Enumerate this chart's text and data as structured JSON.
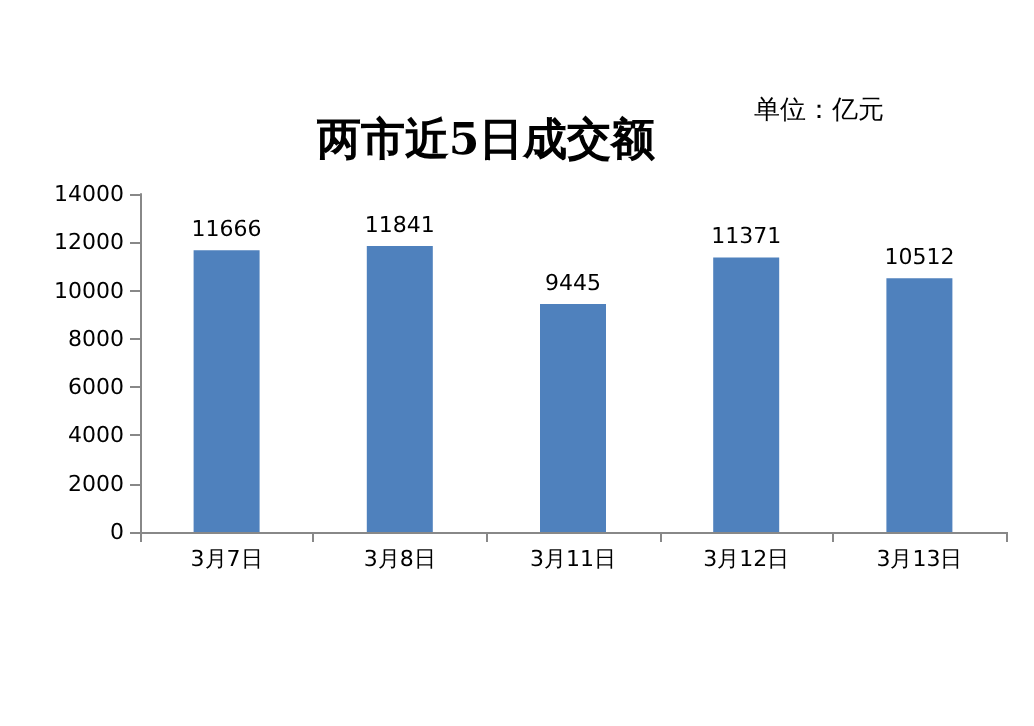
{
  "chart_data": {
    "type": "bar",
    "title": "两市近5日成交额",
    "annotations": [
      "单位：亿元"
    ],
    "categories": [
      "3月7日",
      "3月8日",
      "3月11日",
      "3月12日",
      "3月13日"
    ],
    "values": [
      11666,
      11841,
      9445,
      11371,
      10512
    ],
    "color": "#4f81bd",
    "ylim": [
      0,
      14000
    ],
    "yticks": [
      0,
      2000,
      4000,
      6000,
      8000,
      10000,
      12000,
      14000
    ],
    "grid": false,
    "data_labels": true
  }
}
